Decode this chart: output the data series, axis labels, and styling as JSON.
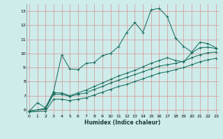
{
  "xlabel": "Humidex (Indice chaleur)",
  "bg_color": "#ceecea",
  "grid_color": "#d4a0a0",
  "line_color": "#1a6e60",
  "xlim": [
    0,
    23
  ],
  "ylim": [
    5.7,
    13.5
  ],
  "xticks": [
    0,
    1,
    2,
    3,
    4,
    5,
    6,
    7,
    8,
    9,
    10,
    11,
    12,
    13,
    14,
    15,
    16,
    17,
    18,
    19,
    20,
    21,
    22,
    23
  ],
  "yticks": [
    6,
    7,
    8,
    9,
    10,
    11,
    12,
    13
  ],
  "line1_x": [
    0,
    1,
    2,
    3,
    4,
    5,
    6,
    7,
    8,
    9,
    10,
    11,
    12,
    13,
    14,
    15,
    16,
    17,
    18,
    19,
    20,
    21,
    22,
    23
  ],
  "line1_y": [
    5.9,
    6.5,
    6.15,
    7.3,
    9.9,
    8.9,
    8.85,
    9.3,
    9.35,
    9.85,
    10.0,
    10.5,
    11.5,
    12.2,
    11.5,
    13.1,
    13.2,
    12.6,
    11.1,
    10.5,
    10.1,
    10.8,
    10.7,
    10.4
  ],
  "line2_x": [
    0,
    2,
    3,
    4,
    5,
    6,
    7,
    8,
    9,
    10,
    11,
    12,
    13,
    14,
    15,
    16,
    17,
    18,
    19,
    20,
    21,
    22,
    23
  ],
  "line2_y": [
    5.9,
    6.1,
    7.2,
    7.2,
    7.0,
    7.2,
    7.4,
    7.65,
    7.9,
    8.15,
    8.4,
    8.6,
    8.8,
    9.05,
    9.3,
    9.5,
    9.7,
    9.5,
    9.4,
    10.05,
    10.4,
    10.45,
    10.35
  ],
  "line3_x": [
    0,
    2,
    3,
    4,
    5,
    6,
    7,
    8,
    9,
    10,
    11,
    12,
    13,
    14,
    15,
    16,
    17,
    18,
    19,
    20,
    21,
    22,
    23
  ],
  "line3_y": [
    5.9,
    6.05,
    7.1,
    7.1,
    6.95,
    7.1,
    7.2,
    7.45,
    7.65,
    7.9,
    8.1,
    8.3,
    8.5,
    8.7,
    8.9,
    9.1,
    9.2,
    9.3,
    9.45,
    9.7,
    9.9,
    10.05,
    10.1
  ],
  "line4_x": [
    0,
    2,
    3,
    4,
    5,
    6,
    7,
    8,
    9,
    10,
    11,
    12,
    13,
    14,
    15,
    16,
    17,
    18,
    19,
    20,
    21,
    22,
    23
  ],
  "line4_y": [
    5.85,
    5.9,
    6.75,
    6.75,
    6.65,
    6.75,
    6.85,
    7.05,
    7.25,
    7.45,
    7.65,
    7.8,
    8.0,
    8.2,
    8.4,
    8.6,
    8.7,
    8.85,
    9.0,
    9.2,
    9.4,
    9.55,
    9.65
  ]
}
